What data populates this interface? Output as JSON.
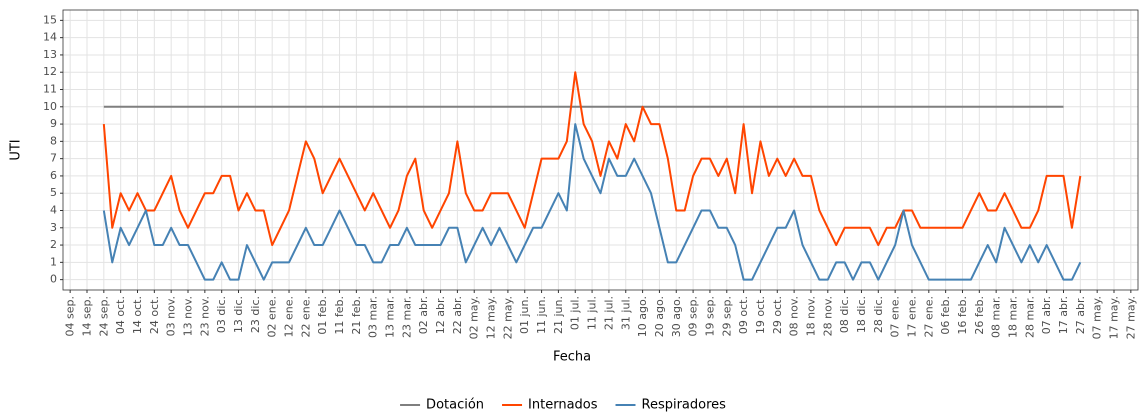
{
  "chart_data": {
    "type": "line",
    "y_label": "UTI",
    "x_label": "Fecha",
    "categories": [
      "04 sep.",
      null,
      "14 sep.",
      null,
      "24 sep.",
      null,
      "04 oct.",
      null,
      "14 oct.",
      null,
      "24 oct.",
      null,
      "03 nov.",
      null,
      "13 nov.",
      null,
      "23 nov.",
      null,
      "03 dic.",
      null,
      "13 dic.",
      null,
      "23 dic.",
      null,
      "02 ene.",
      null,
      "12 ene.",
      null,
      "22 ene.",
      null,
      "01 feb.",
      null,
      "11 feb.",
      null,
      "21 feb.",
      null,
      "03 mar.",
      null,
      "13 mar.",
      null,
      "23 mar.",
      null,
      "02 abr.",
      null,
      "12 abr.",
      null,
      "22 abr.",
      null,
      "02 may.",
      null,
      "12 may.",
      null,
      "22 may.",
      null,
      "01 jun.",
      null,
      "11 jun.",
      null,
      "21 jun.",
      null,
      "01 jul.",
      null,
      "11 jul.",
      null,
      "21 jul.",
      null,
      "31 jul.",
      null,
      "10 ago.",
      null,
      "20 ago.",
      null,
      "30 ago.",
      null,
      "09 sep.",
      null,
      "19 sep.",
      null,
      "29 sep.",
      null,
      "09 oct.",
      null,
      "19 oct.",
      null,
      "29 oct.",
      null,
      "08 nov.",
      null,
      "18 nov.",
      null,
      "28 nov.",
      null,
      "08 dic.",
      null,
      "18 dic.",
      null,
      "28 dic.",
      null,
      "07 ene.",
      null,
      "17 ene.",
      null,
      "27 ene.",
      null,
      "06 feb.",
      null,
      "16 feb.",
      null,
      "26 feb.",
      null,
      "08 mar.",
      null,
      "18 mar.",
      null,
      "28 mar.",
      null,
      "07 abr.",
      null,
      "17 abr.",
      null,
      "27 abr.",
      null,
      "07 may.",
      null,
      "17 may.",
      null,
      "27 may."
    ],
    "series": [
      {
        "name": "Dotación",
        "color": "#7f7f7f",
        "values": [
          null,
          null,
          null,
          null,
          10,
          10,
          10,
          10,
          10,
          10,
          10,
          10,
          10,
          10,
          10,
          10,
          10,
          10,
          10,
          10,
          10,
          10,
          10,
          10,
          10,
          10,
          10,
          10,
          10,
          10,
          10,
          10,
          10,
          10,
          10,
          10,
          10,
          10,
          10,
          10,
          10,
          10,
          10,
          10,
          10,
          10,
          10,
          10,
          10,
          10,
          10,
          10,
          10,
          10,
          10,
          10,
          10,
          10,
          10,
          10,
          10,
          10,
          10,
          10,
          10,
          10,
          10,
          10,
          10,
          10,
          10,
          10,
          10,
          10,
          10,
          10,
          10,
          10,
          10,
          10,
          10,
          10,
          10,
          10,
          10,
          10,
          10,
          10,
          10,
          10,
          10,
          10,
          10,
          10,
          10,
          10,
          10,
          10,
          10,
          10,
          10,
          10,
          10,
          10,
          10,
          10,
          10,
          10,
          10,
          10,
          10,
          10,
          10,
          10,
          10,
          10,
          10,
          10,
          10,
          null,
          null,
          null,
          null,
          null,
          null,
          null,
          null
        ]
      },
      {
        "name": "Internados",
        "color": "#ff4500",
        "values": [
          null,
          null,
          null,
          null,
          9,
          3,
          5,
          4,
          5,
          4,
          4,
          5,
          6,
          4,
          3,
          4,
          5,
          5,
          6,
          6,
          4,
          5,
          4,
          4,
          2,
          3,
          4,
          6,
          8,
          7,
          5,
          6,
          7,
          6,
          5,
          4,
          5,
          4,
          3,
          4,
          6,
          7,
          4,
          3,
          4,
          5,
          8,
          5,
          4,
          4,
          5,
          5,
          5,
          4,
          3,
          5,
          7,
          7,
          7,
          8,
          12,
          9,
          8,
          6,
          8,
          7,
          9,
          8,
          10,
          9,
          9,
          7,
          4,
          4,
          6,
          7,
          7,
          6,
          7,
          5,
          9,
          5,
          8,
          6,
          7,
          6,
          7,
          6,
          6,
          4,
          3,
          2,
          3,
          3,
          3,
          3,
          2,
          3,
          3,
          4,
          4,
          3,
          3,
          3,
          3,
          3,
          3,
          4,
          5,
          4,
          4,
          5,
          4,
          3,
          3,
          4,
          6,
          6,
          6,
          3,
          6,
          null,
          null,
          null,
          null,
          null,
          null
        ]
      },
      {
        "name": "Respiradores",
        "color": "#4682b4",
        "values": [
          null,
          null,
          null,
          null,
          4,
          1,
          3,
          2,
          3,
          4,
          2,
          2,
          3,
          2,
          2,
          1,
          0,
          0,
          1,
          0,
          0,
          2,
          1,
          0,
          1,
          1,
          1,
          2,
          3,
          2,
          2,
          3,
          4,
          3,
          2,
          2,
          1,
          1,
          2,
          2,
          3,
          2,
          2,
          2,
          2,
          3,
          3,
          1,
          2,
          3,
          2,
          3,
          2,
          1,
          2,
          3,
          3,
          4,
          5,
          4,
          9,
          7,
          6,
          5,
          7,
          6,
          6,
          7,
          6,
          5,
          3,
          1,
          1,
          2,
          3,
          4,
          4,
          3,
          3,
          2,
          0,
          0,
          1,
          2,
          3,
          3,
          4,
          2,
          1,
          0,
          0,
          1,
          1,
          0,
          1,
          1,
          0,
          1,
          2,
          4,
          2,
          1,
          0,
          0,
          0,
          0,
          0,
          0,
          1,
          2,
          1,
          3,
          2,
          1,
          2,
          1,
          2,
          1,
          0,
          0,
          1,
          null,
          null,
          null,
          null,
          null,
          null
        ]
      }
    ],
    "ylim": [
      -0.6,
      15.6
    ],
    "yticks": [
      0,
      1,
      2,
      3,
      4,
      5,
      6,
      7,
      8,
      9,
      10,
      11,
      12,
      13,
      14,
      15
    ],
    "grid": true,
    "legend": "bottom"
  }
}
